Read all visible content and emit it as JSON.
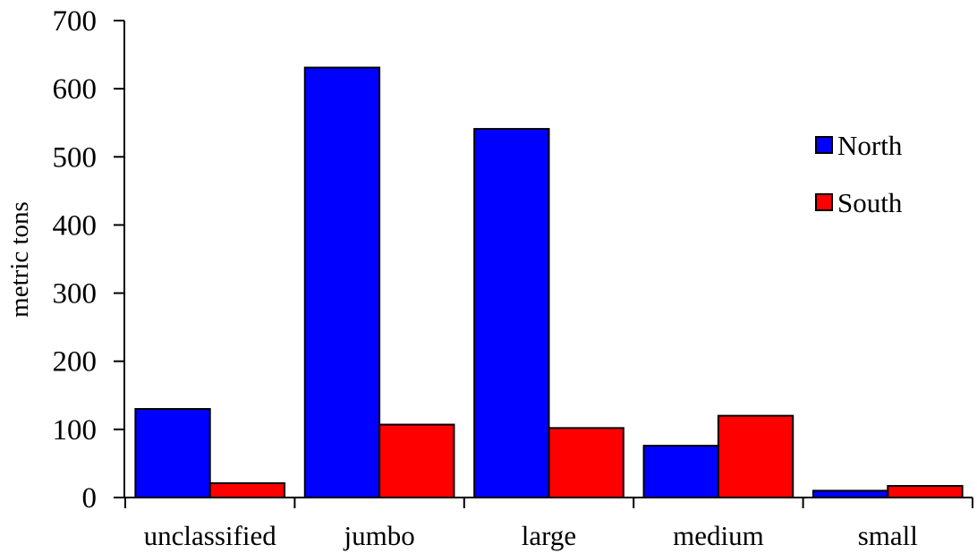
{
  "chart_data": {
    "type": "bar",
    "categories": [
      "unclassified",
      "jumbo",
      "large",
      "medium",
      "small"
    ],
    "series": [
      {
        "name": "North",
        "color": "#0000ff",
        "values": [
          130,
          631,
          541,
          76,
          10
        ]
      },
      {
        "name": "South",
        "color": "#ff0000",
        "values": [
          21,
          107,
          102,
          120,
          17
        ]
      }
    ],
    "ylabel": "metric tons",
    "xlabel": "",
    "ylim": [
      0,
      700
    ],
    "yticks": [
      0,
      100,
      200,
      300,
      400,
      500,
      600,
      700
    ],
    "grid": false,
    "legend_position": "right"
  }
}
